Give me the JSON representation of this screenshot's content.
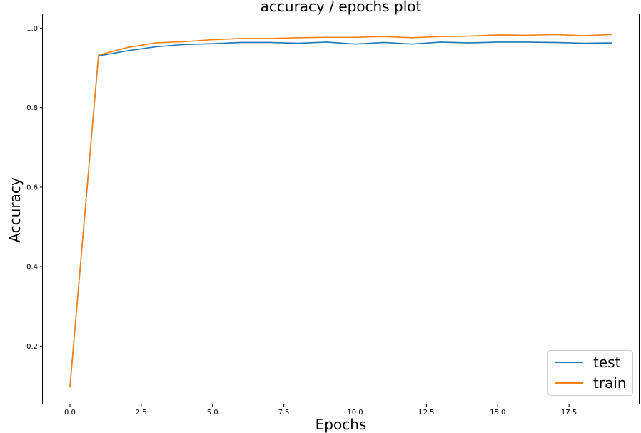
{
  "chart_data": {
    "type": "line",
    "title": "accuracy / epochs plot",
    "xlabel": "Epochs",
    "ylabel": "Accuracy",
    "xlim": [
      -0.95,
      19.95
    ],
    "ylim": [
      0.055,
      1.035
    ],
    "xticks": [
      0.0,
      2.5,
      5.0,
      7.5,
      10.0,
      12.5,
      15.0,
      17.5
    ],
    "xtick_labels": [
      "0.0",
      "2.5",
      "5.0",
      "7.5",
      "10.0",
      "12.5",
      "15.0",
      "17.5"
    ],
    "yticks": [
      0.2,
      0.4,
      0.6,
      0.8,
      1.0
    ],
    "ytick_labels": [
      "0.2",
      "0.4",
      "0.6",
      "0.8",
      "1.0"
    ],
    "grid": false,
    "legend_position": "lower-right",
    "x": [
      0,
      1,
      2,
      3,
      4,
      5,
      6,
      7,
      8,
      9,
      10,
      11,
      12,
      13,
      14,
      15,
      16,
      17,
      18,
      19
    ],
    "series": [
      {
        "name": "test",
        "color": "#1f77b4",
        "values": [
          0.097,
          0.93,
          0.943,
          0.953,
          0.959,
          0.961,
          0.964,
          0.964,
          0.962,
          0.965,
          0.96,
          0.964,
          0.96,
          0.965,
          0.963,
          0.965,
          0.965,
          0.964,
          0.962,
          0.963
        ]
      },
      {
        "name": "train",
        "color": "#ff7f0e",
        "values": [
          0.097,
          0.932,
          0.951,
          0.963,
          0.966,
          0.971,
          0.974,
          0.974,
          0.976,
          0.977,
          0.977,
          0.979,
          0.976,
          0.979,
          0.98,
          0.983,
          0.982,
          0.984,
          0.981,
          0.984
        ]
      }
    ]
  }
}
